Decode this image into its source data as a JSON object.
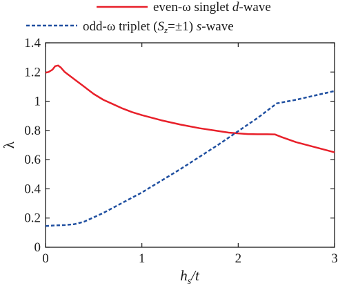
{
  "chart_data": {
    "type": "line",
    "xlabel": {
      "main": "h",
      "sub": "s",
      "tail": "/t"
    },
    "ylabel": "λ",
    "xlim": [
      0,
      3
    ],
    "ylim": [
      0,
      1.4
    ],
    "x_ticks": [
      "0",
      "1",
      "2",
      "3"
    ],
    "y_ticks": [
      "0",
      "0.2",
      "0.4",
      "0.6",
      "0.8",
      "1",
      "1.2",
      "1.4"
    ],
    "grid": false,
    "legend_position": "top, above plot",
    "series": [
      {
        "name": "even-ω singlet d-wave",
        "legend": {
          "pre": "even-ω singlet ",
          "italic": "d",
          "post": "-wave"
        },
        "color": "#e8202a",
        "style": "solid",
        "x": [
          0,
          0.03,
          0.07,
          0.1,
          0.13,
          0.16,
          0.2,
          0.3,
          0.4,
          0.5,
          0.6,
          0.7,
          0.8,
          0.9,
          1.0,
          1.2,
          1.4,
          1.6,
          1.8,
          1.9,
          2.0,
          2.1,
          2.2,
          2.3,
          2.38,
          2.45,
          2.6,
          2.8,
          3.0
        ],
        "y": [
          1.195,
          1.2,
          1.215,
          1.24,
          1.245,
          1.23,
          1.2,
          1.15,
          1.1,
          1.05,
          1.01,
          0.98,
          0.95,
          0.925,
          0.905,
          0.87,
          0.84,
          0.815,
          0.795,
          0.785,
          0.78,
          0.775,
          0.774,
          0.774,
          0.773,
          0.755,
          0.72,
          0.685,
          0.65
        ]
      },
      {
        "name": "odd-ω triplet (Sz=±1) s-wave",
        "legend": {
          "pre": "odd-ω triplet (",
          "italic": "S",
          "sub": "z",
          "mid": "=±1) ",
          "italic2": "s",
          "post": "-wave"
        },
        "color": "#1f4fa0",
        "style": "dashed",
        "x": [
          0,
          0.1,
          0.2,
          0.3,
          0.4,
          0.5,
          0.6,
          0.7,
          0.8,
          0.9,
          1.0,
          1.2,
          1.4,
          1.6,
          1.8,
          2.0,
          2.2,
          2.4,
          2.6,
          2.8,
          3.0
        ],
        "y": [
          0.145,
          0.15,
          0.152,
          0.158,
          0.175,
          0.205,
          0.235,
          0.27,
          0.305,
          0.34,
          0.375,
          0.455,
          0.535,
          0.62,
          0.705,
          0.795,
          0.885,
          0.985,
          1.01,
          1.04,
          1.07
        ]
      }
    ]
  }
}
